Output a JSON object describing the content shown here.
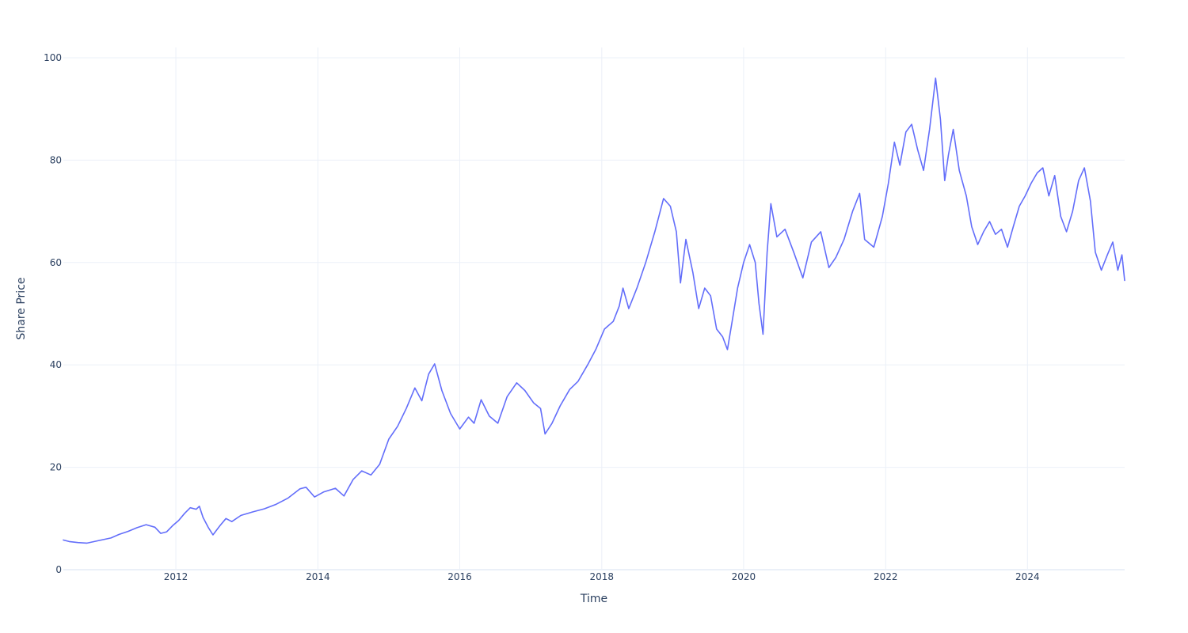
{
  "chart_data": {
    "type": "line",
    "title": "",
    "xlabel": "Time",
    "ylabel": "Share Price",
    "xlim": [
      "2010-06-01",
      "2025-05-15"
    ],
    "ylim": [
      0,
      102
    ],
    "x_ticks": [
      "2012",
      "2014",
      "2016",
      "2018",
      "2020",
      "2022",
      "2024"
    ],
    "y_ticks": [
      "0",
      "20",
      "40",
      "60",
      "80",
      "100"
    ],
    "grid": true,
    "legend": "none",
    "series": [
      {
        "color": "#636efa",
        "points": [
          [
            "2010-06-01",
            5.8
          ],
          [
            "2010-07-01",
            5.5
          ],
          [
            "2010-08-15",
            5.3
          ],
          [
            "2010-10-01",
            5.2
          ],
          [
            "2010-12-01",
            5.7
          ],
          [
            "2011-02-01",
            6.2
          ],
          [
            "2011-03-15",
            6.9
          ],
          [
            "2011-05-01",
            7.5
          ],
          [
            "2011-06-15",
            8.2
          ],
          [
            "2011-08-01",
            8.8
          ],
          [
            "2011-09-15",
            8.3
          ],
          [
            "2011-10-15",
            7.1
          ],
          [
            "2011-11-15",
            7.4
          ],
          [
            "2011-12-15",
            8.6
          ],
          [
            "2012-01-15",
            9.6
          ],
          [
            "2012-02-15",
            11.0
          ],
          [
            "2012-03-15",
            12.1
          ],
          [
            "2012-04-15",
            11.8
          ],
          [
            "2012-05-01",
            12.4
          ],
          [
            "2012-05-20",
            10.2
          ],
          [
            "2012-06-15",
            8.3
          ],
          [
            "2012-07-10",
            6.8
          ],
          [
            "2012-08-15",
            8.6
          ],
          [
            "2012-09-15",
            10.0
          ],
          [
            "2012-10-15",
            9.4
          ],
          [
            "2012-12-01",
            10.6
          ],
          [
            "2013-02-01",
            11.3
          ],
          [
            "2013-04-01",
            11.9
          ],
          [
            "2013-06-01",
            12.8
          ],
          [
            "2013-08-01",
            14.0
          ],
          [
            "2013-10-01",
            15.8
          ],
          [
            "2013-11-01",
            16.1
          ],
          [
            "2013-12-15",
            14.2
          ],
          [
            "2014-02-01",
            15.2
          ],
          [
            "2014-04-01",
            15.9
          ],
          [
            "2014-05-15",
            14.4
          ],
          [
            "2014-07-01",
            17.6
          ],
          [
            "2014-08-15",
            19.3
          ],
          [
            "2014-10-01",
            18.5
          ],
          [
            "2014-11-15",
            20.6
          ],
          [
            "2015-01-01",
            25.5
          ],
          [
            "2015-02-15",
            28.0
          ],
          [
            "2015-04-01",
            31.5
          ],
          [
            "2015-05-15",
            35.5
          ],
          [
            "2015-06-20",
            33.0
          ],
          [
            "2015-07-25",
            38.2
          ],
          [
            "2015-08-25",
            40.2
          ],
          [
            "2015-10-01",
            35.0
          ],
          [
            "2015-11-15",
            30.5
          ],
          [
            "2016-01-01",
            27.5
          ],
          [
            "2016-02-15",
            29.8
          ],
          [
            "2016-03-15",
            28.6
          ],
          [
            "2016-04-20",
            33.2
          ],
          [
            "2016-06-01",
            30.0
          ],
          [
            "2016-07-15",
            28.6
          ],
          [
            "2016-09-01",
            33.8
          ],
          [
            "2016-10-20",
            36.5
          ],
          [
            "2016-12-01",
            35.0
          ],
          [
            "2017-01-15",
            32.6
          ],
          [
            "2017-02-20",
            31.5
          ],
          [
            "2017-03-15",
            26.5
          ],
          [
            "2017-04-20",
            28.6
          ],
          [
            "2017-06-01",
            32.0
          ],
          [
            "2017-07-20",
            35.2
          ],
          [
            "2017-09-01",
            36.8
          ],
          [
            "2017-10-20",
            40.0
          ],
          [
            "2017-12-01",
            43.0
          ],
          [
            "2018-01-15",
            47.0
          ],
          [
            "2018-03-01",
            48.5
          ],
          [
            "2018-04-01",
            51.5
          ],
          [
            "2018-04-20",
            55.0
          ],
          [
            "2018-05-20",
            51.0
          ],
          [
            "2018-07-01",
            55.0
          ],
          [
            "2018-08-15",
            60.0
          ],
          [
            "2018-10-01",
            66.0
          ],
          [
            "2018-11-15",
            72.5
          ],
          [
            "2018-12-20",
            71.0
          ],
          [
            "2019-01-20",
            66.0
          ],
          [
            "2019-02-10",
            56.0
          ],
          [
            "2019-03-10",
            64.5
          ],
          [
            "2019-04-15",
            58.0
          ],
          [
            "2019-05-15",
            51.0
          ],
          [
            "2019-06-15",
            55.0
          ],
          [
            "2019-07-15",
            53.5
          ],
          [
            "2019-08-15",
            47.0
          ],
          [
            "2019-09-15",
            45.5
          ],
          [
            "2019-10-10",
            43.0
          ],
          [
            "2019-11-01",
            48.0
          ],
          [
            "2019-12-01",
            55.0
          ],
          [
            "2020-01-01",
            60.0
          ],
          [
            "2020-02-01",
            63.5
          ],
          [
            "2020-03-01",
            60.0
          ],
          [
            "2020-03-20",
            52.0
          ],
          [
            "2020-04-10",
            46.0
          ],
          [
            "2020-05-01",
            62.0
          ],
          [
            "2020-05-20",
            71.5
          ],
          [
            "2020-06-20",
            65.0
          ],
          [
            "2020-08-01",
            66.5
          ],
          [
            "2020-09-15",
            62.0
          ],
          [
            "2020-11-01",
            57.0
          ],
          [
            "2020-12-15",
            64.0
          ],
          [
            "2021-02-01",
            66.0
          ],
          [
            "2021-03-15",
            59.0
          ],
          [
            "2021-04-20",
            61.0
          ],
          [
            "2021-06-01",
            64.5
          ],
          [
            "2021-07-15",
            70.0
          ],
          [
            "2021-08-20",
            73.5
          ],
          [
            "2021-09-15",
            64.5
          ],
          [
            "2021-11-01",
            63.0
          ],
          [
            "2021-12-15",
            69.0
          ],
          [
            "2022-01-15",
            75.5
          ],
          [
            "2022-02-15",
            83.5
          ],
          [
            "2022-03-15",
            79.0
          ],
          [
            "2022-04-15",
            85.5
          ],
          [
            "2022-05-15",
            87.0
          ],
          [
            "2022-06-15",
            82.0
          ],
          [
            "2022-07-15",
            78.0
          ],
          [
            "2022-08-15",
            86.0
          ],
          [
            "2022-09-15",
            96.0
          ],
          [
            "2022-10-10",
            88.0
          ],
          [
            "2022-11-01",
            76.0
          ],
          [
            "2022-11-20",
            81.0
          ],
          [
            "2022-12-15",
            86.0
          ],
          [
            "2023-01-15",
            78.0
          ],
          [
            "2023-02-20",
            73.0
          ],
          [
            "2023-03-20",
            67.0
          ],
          [
            "2023-04-20",
            63.5
          ],
          [
            "2023-05-20",
            66.0
          ],
          [
            "2023-06-20",
            68.0
          ],
          [
            "2023-07-20",
            65.5
          ],
          [
            "2023-08-20",
            66.5
          ],
          [
            "2023-09-20",
            63.0
          ],
          [
            "2023-10-20",
            67.0
          ],
          [
            "2023-11-20",
            71.0
          ],
          [
            "2023-12-20",
            73.0
          ],
          [
            "2024-01-20",
            75.5
          ],
          [
            "2024-02-20",
            77.5
          ],
          [
            "2024-03-20",
            78.5
          ],
          [
            "2024-04-20",
            73.0
          ],
          [
            "2024-05-20",
            77.0
          ],
          [
            "2024-06-20",
            69.0
          ],
          [
            "2024-07-20",
            66.0
          ],
          [
            "2024-08-20",
            70.0
          ],
          [
            "2024-09-20",
            76.0
          ],
          [
            "2024-10-20",
            78.5
          ],
          [
            "2024-11-20",
            72.0
          ],
          [
            "2024-12-15",
            62.0
          ],
          [
            "2025-01-15",
            58.5
          ],
          [
            "2025-02-15",
            61.5
          ],
          [
            "2025-03-15",
            64.0
          ],
          [
            "2025-04-10",
            58.5
          ],
          [
            "2025-05-01",
            61.5
          ],
          [
            "2025-05-15",
            56.5
          ]
        ]
      }
    ]
  }
}
